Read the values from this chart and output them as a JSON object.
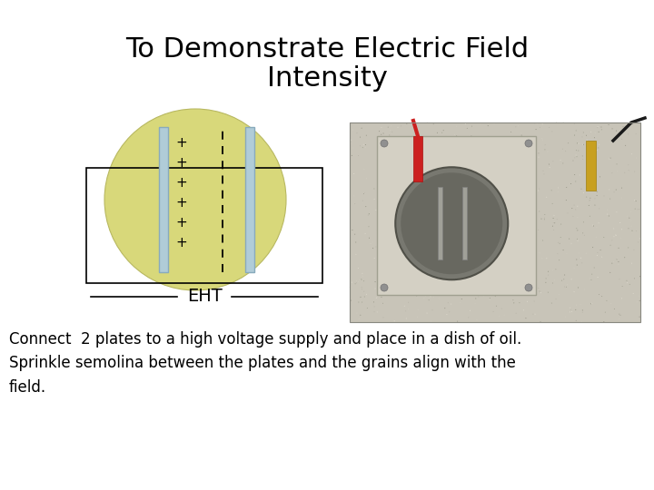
{
  "title_line1": "To Demonstrate Electric Field",
  "title_line2": "Intensity",
  "title_fontsize": 22,
  "title_color": "#000000",
  "body_text": "Connect  2 plates to a high voltage supply and place in a dish of oil.\nSprinkle semolina between the plates and the grains align with the\nfield.",
  "body_fontsize": 12,
  "eht_label": "EHT",
  "eht_fontsize": 14,
  "bg_color": "#ffffff",
  "circle_color": "#d8d87a",
  "plate_color": "#b0ccd8",
  "plate_edge_color": "#88aabc"
}
